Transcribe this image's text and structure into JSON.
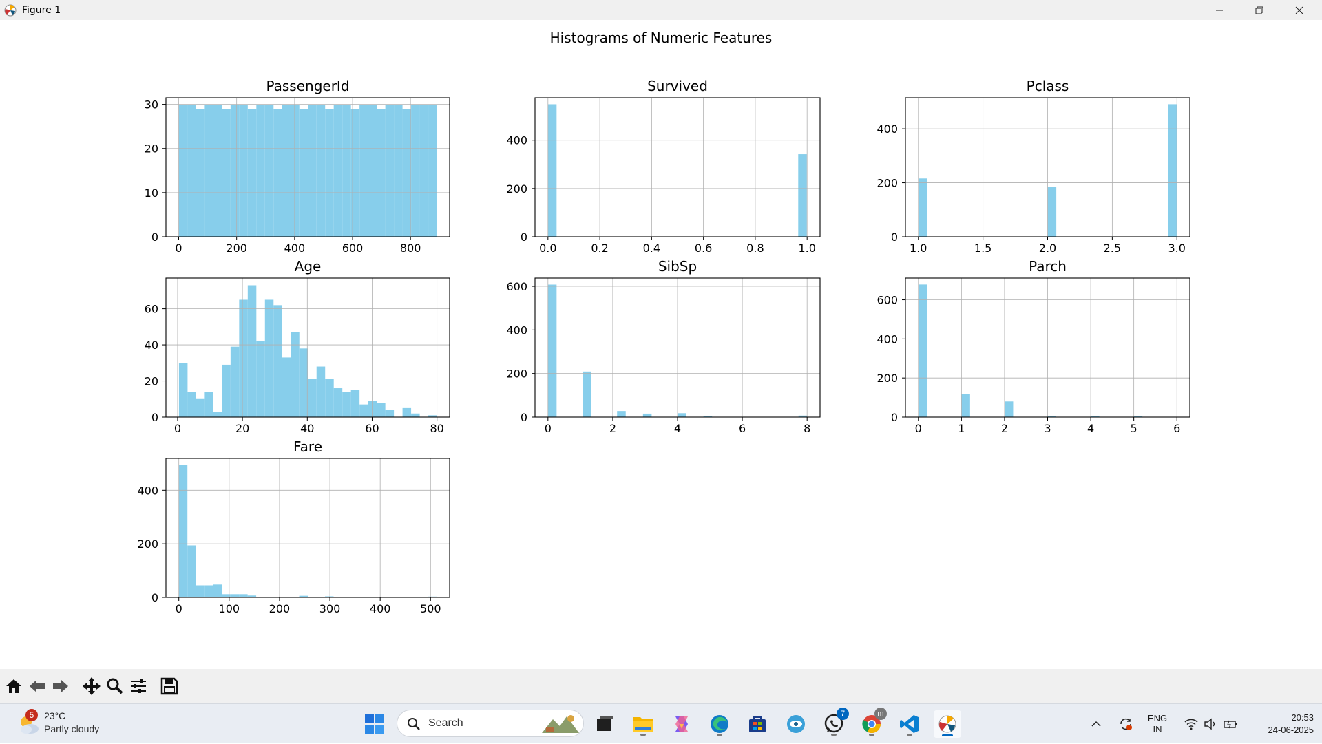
{
  "window": {
    "title": "Figure 1"
  },
  "figure": {
    "suptitle": "Histograms of Numeric Features",
    "bar_color": "#87ceeb"
  },
  "toolbar": {
    "buttons": [
      "home-icon",
      "back-icon",
      "forward-icon",
      "pan-icon",
      "zoom-icon",
      "configure-subplots-icon",
      "save-icon"
    ]
  },
  "taskbar": {
    "weather": {
      "badge": "5",
      "temperature": "23°C",
      "description": "Partly cloudy"
    },
    "search_label": "Search",
    "whatsapp_badge": "7",
    "chrome_badge": "m",
    "language": {
      "line1": "ENG",
      "line2": "IN"
    },
    "clock": {
      "time": "20:53",
      "date": "24-06-2025"
    }
  },
  "chart_data": [
    {
      "type": "bar",
      "title": "PassengerId",
      "xlim": [
        -44,
        935
      ],
      "ylim": [
        0,
        31.5
      ],
      "xticks": [
        0,
        200,
        400,
        600,
        800
      ],
      "xtick_labels": [
        "0",
        "200",
        "400",
        "600",
        "800"
      ],
      "yticks": [
        0,
        10,
        20,
        30
      ],
      "ytick_labels": [
        "0",
        "10",
        "20",
        "30"
      ],
      "bin_start": 1,
      "bin_width": 29.67,
      "values": [
        30,
        30,
        29,
        30,
        30,
        29,
        30,
        30,
        29,
        30,
        30,
        29,
        30,
        30,
        29,
        30,
        30,
        29,
        30,
        30,
        29,
        30,
        30,
        29,
        30,
        30,
        29,
        30,
        30,
        30
      ]
    },
    {
      "type": "bar",
      "title": "Survived",
      "xlim": [
        -0.05,
        1.05
      ],
      "ylim": [
        0,
        576
      ],
      "xticks": [
        0,
        0.2,
        0.4,
        0.6,
        0.8,
        1.0
      ],
      "xtick_labels": [
        "0.0",
        "0.2",
        "0.4",
        "0.6",
        "0.8",
        "1.0"
      ],
      "yticks": [
        0,
        200,
        400
      ],
      "ytick_labels": [
        "0",
        "200",
        "400"
      ],
      "bin_start": 0,
      "bin_width": 0.0333,
      "values": [
        549,
        0,
        0,
        0,
        0,
        0,
        0,
        0,
        0,
        0,
        0,
        0,
        0,
        0,
        0,
        0,
        0,
        0,
        0,
        0,
        0,
        0,
        0,
        0,
        0,
        0,
        0,
        0,
        0,
        342
      ]
    },
    {
      "type": "bar",
      "title": "Pclass",
      "xlim": [
        0.9,
        3.1
      ],
      "ylim": [
        0,
        515
      ],
      "xticks": [
        1.0,
        1.5,
        2.0,
        2.5,
        3.0
      ],
      "xtick_labels": [
        "1.0",
        "1.5",
        "2.0",
        "2.5",
        "3.0"
      ],
      "yticks": [
        0,
        200,
        400
      ],
      "ytick_labels": [
        "0",
        "200",
        "400"
      ],
      "bin_start": 1,
      "bin_width": 0.0667,
      "values": [
        216,
        0,
        0,
        0,
        0,
        0,
        0,
        0,
        0,
        0,
        0,
        0,
        0,
        0,
        0,
        184,
        0,
        0,
        0,
        0,
        0,
        0,
        0,
        0,
        0,
        0,
        0,
        0,
        0,
        491
      ]
    },
    {
      "type": "bar",
      "title": "Age",
      "xlim": [
        -3.6,
        83.9
      ],
      "ylim": [
        0,
        77
      ],
      "xticks": [
        0,
        20,
        40,
        60,
        80
      ],
      "xtick_labels": [
        "0",
        "20",
        "40",
        "60",
        "80"
      ],
      "yticks": [
        0,
        20,
        40,
        60
      ],
      "ytick_labels": [
        "0",
        "20",
        "40",
        "60"
      ],
      "bin_start": 0.42,
      "bin_width": 2.652,
      "values": [
        30,
        14,
        10,
        14,
        3,
        29,
        39,
        65,
        73,
        42,
        65,
        62,
        33,
        47,
        38,
        21,
        28,
        21,
        16,
        14,
        15,
        7,
        9,
        8,
        4,
        0,
        5,
        2,
        0,
        1
      ]
    },
    {
      "type": "bar",
      "title": "SibSp",
      "xlim": [
        -0.4,
        8.4
      ],
      "ylim": [
        0,
        638
      ],
      "xticks": [
        0,
        2,
        4,
        6,
        8
      ],
      "xtick_labels": [
        "0",
        "2",
        "4",
        "6",
        "8"
      ],
      "yticks": [
        0,
        200,
        400,
        600
      ],
      "ytick_labels": [
        "0",
        "200",
        "400",
        "600"
      ],
      "bin_start": 0,
      "bin_width": 0.2667,
      "values": [
        608,
        0,
        0,
        0,
        209,
        0,
        0,
        0,
        28,
        0,
        0,
        16,
        0,
        0,
        0,
        18,
        0,
        0,
        5,
        0,
        0,
        0,
        0,
        0,
        0,
        0,
        0,
        0,
        0,
        7
      ]
    },
    {
      "type": "bar",
      "title": "Parch",
      "xlim": [
        -0.3,
        6.3
      ],
      "ylim": [
        0,
        711
      ],
      "xticks": [
        0,
        1,
        2,
        3,
        4,
        5,
        6
      ],
      "xtick_labels": [
        "0",
        "1",
        "2",
        "3",
        "4",
        "5",
        "6"
      ],
      "yticks": [
        0,
        200,
        400,
        600
      ],
      "ytick_labels": [
        "0",
        "200",
        "400",
        "600"
      ],
      "bin_start": 0,
      "bin_width": 0.2,
      "values": [
        678,
        0,
        0,
        0,
        0,
        118,
        0,
        0,
        0,
        0,
        80,
        0,
        0,
        0,
        0,
        5,
        0,
        0,
        0,
        0,
        4,
        0,
        0,
        0,
        0,
        5,
        0,
        0,
        0,
        1
      ]
    },
    {
      "type": "bar",
      "title": "Fare",
      "xlim": [
        -25.6,
        537.9
      ],
      "ylim": [
        0,
        519
      ],
      "xticks": [
        0,
        100,
        200,
        300,
        400,
        500
      ],
      "xtick_labels": [
        "0",
        "100",
        "200",
        "300",
        "400",
        "500"
      ],
      "yticks": [
        0,
        200,
        400
      ],
      "ytick_labels": [
        "0",
        "200",
        "400"
      ],
      "bin_start": 0,
      "bin_width": 17.078,
      "values": [
        494,
        194,
        45,
        45,
        48,
        12,
        12,
        12,
        7,
        0,
        0,
        0,
        0,
        2,
        6,
        2,
        0,
        4,
        2,
        0,
        0,
        0,
        0,
        0,
        0,
        0,
        0,
        0,
        0,
        3
      ]
    }
  ]
}
